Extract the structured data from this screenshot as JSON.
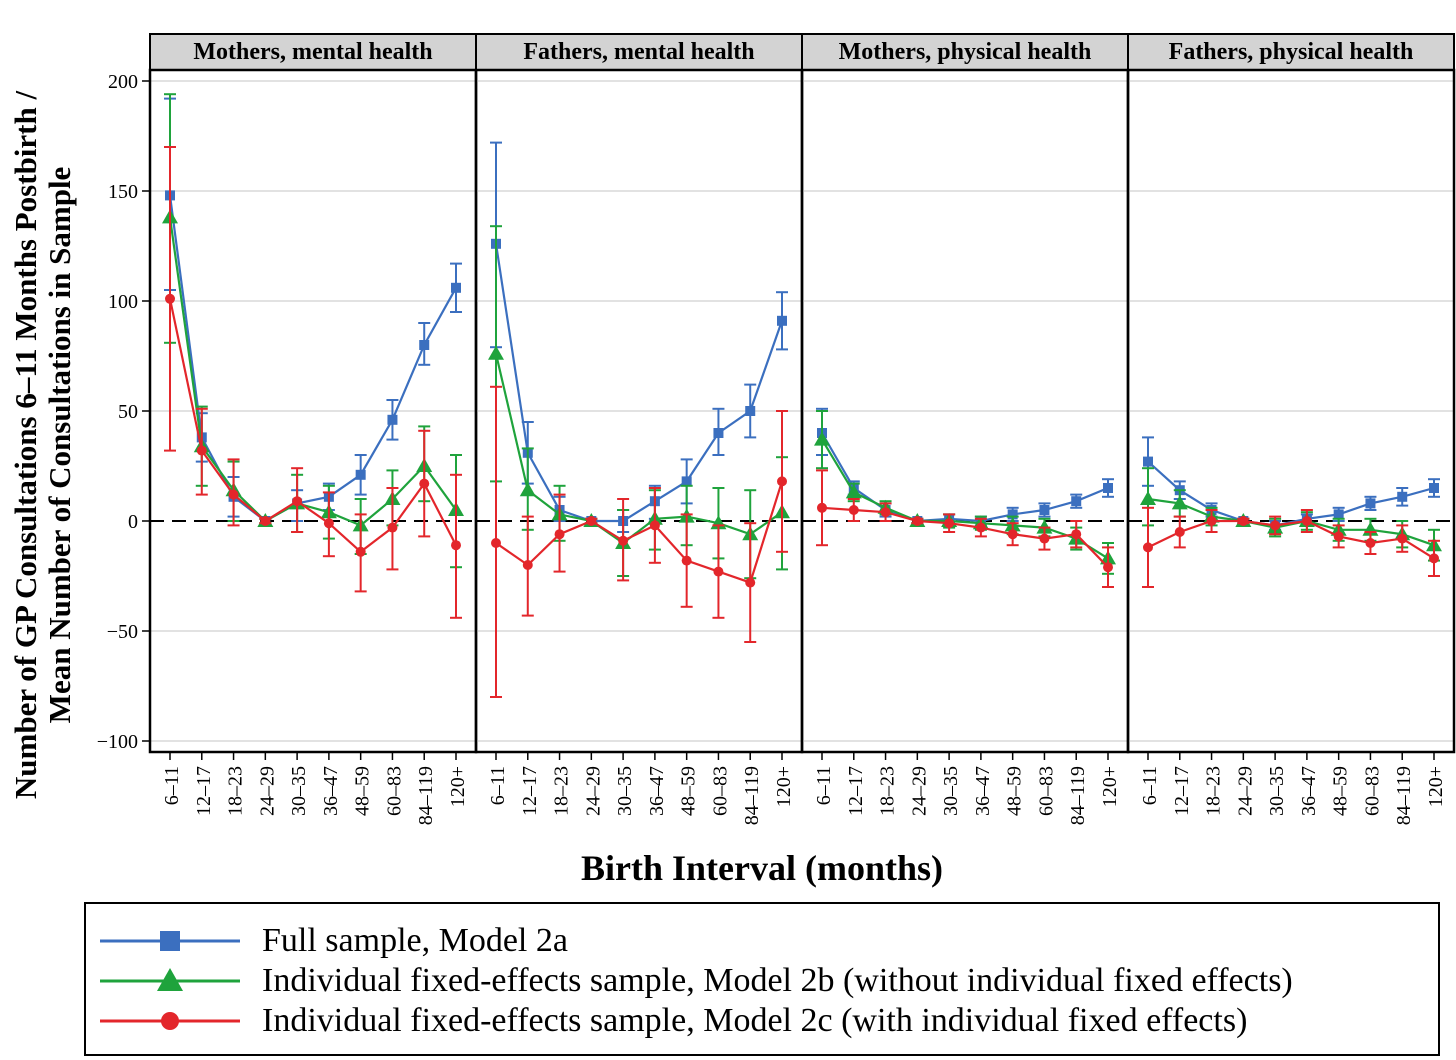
{
  "chart_data": {
    "type": "line",
    "ylabel_line1": "Number of GP Consultations 6–11 Months Postbirth /",
    "ylabel_line2": "Mean Number of Consultations in Sample",
    "xlabel": "Birth Interval (months)",
    "ylim": [
      -105,
      205
    ],
    "yticks": [
      -100,
      -50,
      0,
      50,
      100,
      150,
      200
    ],
    "ytick_labels": [
      "−100",
      "−50",
      "0",
      "50",
      "100",
      "150",
      "200"
    ],
    "reference_line": 0,
    "categories": [
      "6–11",
      "12–17",
      "18–23",
      "24–29",
      "30–35",
      "36–47",
      "48–59",
      "60–83",
      "84–119",
      "120+"
    ],
    "series_styles": [
      {
        "name": "Full sample, Model 2a",
        "color": "#3b6fbf",
        "marker": "square"
      },
      {
        "name": "Individual fixed-effects sample, Model 2b (without individual fixed effects)",
        "color": "#1fa33c",
        "marker": "triangle"
      },
      {
        "name": "Individual fixed-effects sample, Model 2c (with individual fixed effects)",
        "color": "#e3262b",
        "marker": "circle"
      }
    ],
    "panels": [
      {
        "title": "Mothers, mental health",
        "series": [
          {
            "name": "Full sample, Model 2a",
            "values": [
              148,
              38,
              11,
              0,
              8,
              11,
              21,
              46,
              80,
              106
            ],
            "lower": [
              105,
              27,
              2,
              -1,
              0,
              5,
              12,
              37,
              71,
              95
            ],
            "upper": [
              192,
              49,
              20,
              1,
              14,
              17,
              30,
              55,
              90,
              117
            ]
          },
          {
            "name": "Individual fixed-effects sample, Model 2b (without individual fixed effects)",
            "values": [
              138,
              34,
              14,
              0,
              8,
              4,
              -2,
              10,
              25,
              5
            ],
            "lower": [
              81,
              16,
              0,
              -1,
              -5,
              -8,
              -15,
              -2,
              9,
              -21
            ],
            "upper": [
              194,
              52,
              27,
              1,
              21,
              16,
              10,
              23,
              43,
              30
            ]
          },
          {
            "name": "Individual fixed-effects sample, Model 2c (with individual fixed effects)",
            "values": [
              101,
              32,
              12,
              0,
              9,
              -1,
              -14,
              -3,
              17,
              -11
            ],
            "lower": [
              32,
              12,
              -2,
              -1,
              -5,
              -16,
              -32,
              -22,
              -7,
              -44
            ],
            "upper": [
              170,
              51,
              28,
              1,
              24,
              13,
              3,
              15,
              41,
              21
            ]
          }
        ]
      },
      {
        "title": "Fathers, mental health",
        "series": [
          {
            "name": "Full sample, Model 2a",
            "values": [
              126,
              31,
              5,
              0,
              0,
              9,
              18,
              40,
              50,
              91
            ],
            "lower": [
              79,
              17,
              0,
              -1,
              -5,
              1,
              8,
              30,
              38,
              78
            ],
            "upper": [
              172,
              45,
              11,
              1,
              5,
              16,
              28,
              51,
              62,
              104
            ]
          },
          {
            "name": "Individual fixed-effects sample, Model 2b (without individual fixed effects)",
            "values": [
              76,
              14,
              3,
              0,
              -10,
              1,
              2,
              -1,
              -6,
              4
            ],
            "lower": [
              18,
              -4,
              -9,
              -1,
              -25,
              -13,
              -11,
              -17,
              -26,
              -22
            ],
            "upper": [
              134,
              33,
              16,
              1,
              5,
              14,
              16,
              15,
              14,
              29
            ]
          },
          {
            "name": "Individual fixed-effects sample, Model 2c (with individual fixed effects)",
            "values": [
              -10,
              -20,
              -6,
              0,
              -9,
              -2,
              -18,
              -23,
              -28,
              18
            ],
            "lower": [
              -80,
              -43,
              -23,
              -1,
              -27,
              -19,
              -39,
              -44,
              -55,
              -14
            ],
            "upper": [
              61,
              2,
              12,
              1,
              10,
              15,
              3,
              -2,
              -1,
              50
            ]
          }
        ]
      },
      {
        "title": "Mothers, physical health",
        "series": [
          {
            "name": "Full sample, Model 2a",
            "values": [
              40,
              15,
              5,
              0,
              1,
              0,
              3,
              5,
              9,
              15
            ],
            "lower": [
              30,
              12,
              2,
              -1,
              -1,
              -2,
              0,
              2,
              6,
              11
            ],
            "upper": [
              51,
              18,
              8,
              1,
              3,
              2,
              6,
              8,
              12,
              19
            ]
          },
          {
            "name": "Individual fixed-effects sample, Model 2b (without individual fixed effects)",
            "values": [
              37,
              13,
              6,
              0,
              0,
              -1,
              -2,
              -3,
              -8,
              -17
            ],
            "lower": [
              24,
              9,
              3,
              -1,
              -3,
              -4,
              -6,
              -7,
              -13,
              -24
            ],
            "upper": [
              50,
              17,
              9,
              1,
              3,
              2,
              2,
              1,
              -3,
              -10
            ]
          },
          {
            "name": "Individual fixed-effects sample, Model 2c (with individual fixed effects)",
            "values": [
              6,
              5,
              4,
              0,
              -1,
              -3,
              -6,
              -8,
              -6,
              -21
            ],
            "lower": [
              -11,
              0,
              0,
              -1,
              -5,
              -7,
              -11,
              -13,
              -12,
              -30
            ],
            "upper": [
              23,
              10,
              8,
              1,
              3,
              1,
              -1,
              -3,
              0,
              -12
            ]
          }
        ]
      },
      {
        "title": "Fathers, physical health",
        "series": [
          {
            "name": "Full sample, Model 2a",
            "values": [
              27,
              14,
              5,
              0,
              -2,
              1,
              3,
              8,
              11,
              15
            ],
            "lower": [
              16,
              10,
              2,
              -1,
              -4,
              -1,
              0,
              5,
              7,
              11
            ],
            "upper": [
              38,
              18,
              8,
              1,
              0,
              3,
              6,
              11,
              15,
              19
            ]
          },
          {
            "name": "Individual fixed-effects sample, Model 2b (without individual fixed effects)",
            "values": [
              10,
              8,
              2,
              0,
              -3,
              0,
              -4,
              -4,
              -6,
              -11
            ],
            "lower": [
              -2,
              2,
              -2,
              -1,
              -7,
              -4,
              -9,
              -9,
              -12,
              -18
            ],
            "upper": [
              24,
              14,
              6,
              1,
              1,
              4,
              1,
              1,
              0,
              -4
            ]
          },
          {
            "name": "Individual fixed-effects sample, Model 2c (with individual fixed effects)",
            "values": [
              -12,
              -5,
              0,
              0,
              -2,
              0,
              -7,
              -10,
              -8,
              -17
            ],
            "lower": [
              -30,
              -12,
              -5,
              -1,
              -6,
              -5,
              -12,
              -15,
              -14,
              -25
            ],
            "upper": [
              6,
              2,
              5,
              1,
              2,
              5,
              -2,
              -5,
              -2,
              -9
            ]
          }
        ]
      }
    ]
  },
  "legend": {
    "entries": [
      {
        "label": "Full sample, Model 2a",
        "color": "#3b6fbf",
        "marker": "square"
      },
      {
        "label": "Individual fixed-effects sample, Model 2b (without individual fixed effects)",
        "color": "#1fa33c",
        "marker": "triangle"
      },
      {
        "label": "Individual fixed-effects sample, Model 2c (with individual fixed effects)",
        "color": "#e3262b",
        "marker": "circle"
      }
    ]
  }
}
